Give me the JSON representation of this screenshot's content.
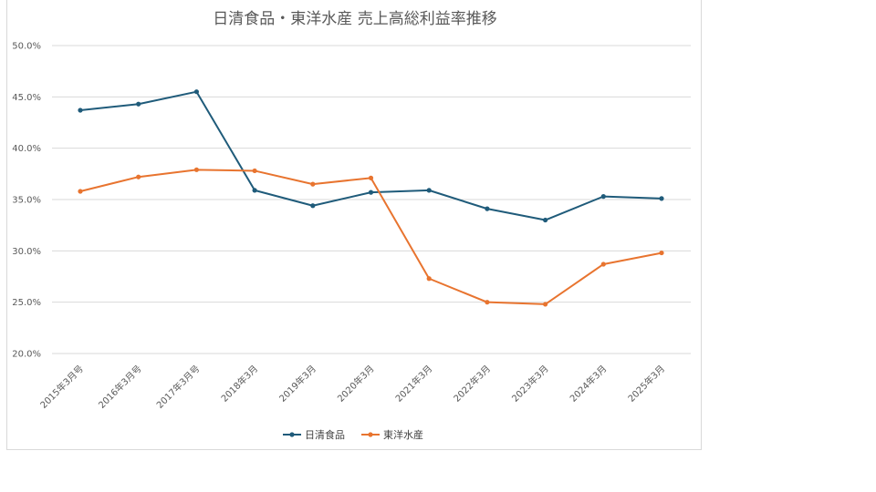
{
  "chart_data": {
    "type": "line",
    "title": "日清食品・東洋水産 売上高総利益率推移",
    "categories": [
      "2015年3月号",
      "2016年3月号",
      "2017年3月号",
      "2018年3月",
      "2019年3月",
      "2020年3月",
      "2021年3月",
      "2022年3月",
      "2023年3月",
      "2024年3月",
      "2025年3月"
    ],
    "series": [
      {
        "name": "日清食品",
        "color": "#1f5b7a",
        "values": [
          43.7,
          44.3,
          45.5,
          35.9,
          34.4,
          35.7,
          35.9,
          34.1,
          33.0,
          35.3,
          35.1
        ]
      },
      {
        "name": "東洋水産",
        "color": "#e8742f",
        "values": [
          35.8,
          37.2,
          37.9,
          37.8,
          36.5,
          37.1,
          27.3,
          25.0,
          24.8,
          28.7,
          29.8
        ]
      }
    ],
    "ylim": [
      20,
      50
    ],
    "yticks": [
      "20.0%",
      "25.0%",
      "30.0%",
      "35.0%",
      "40.0%",
      "45.0%",
      "50.0%"
    ],
    "ytick_values": [
      20,
      25,
      30,
      35,
      40,
      45,
      50
    ],
    "grid": true,
    "legend": "bottom"
  }
}
